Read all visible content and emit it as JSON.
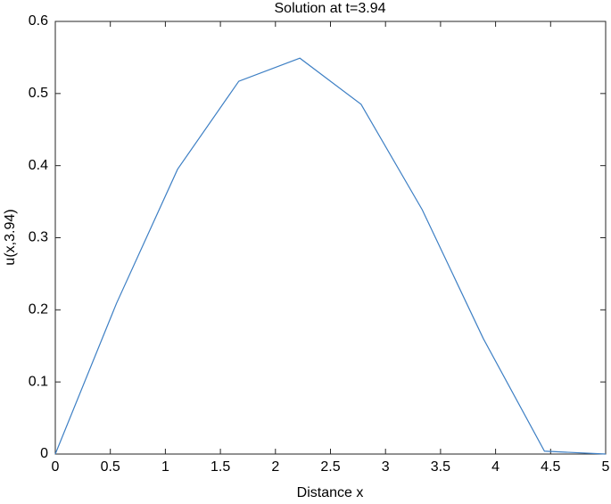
{
  "chart_data": {
    "type": "line",
    "title": "Solution at t=3.94",
    "x_label": "Distance x",
    "y_label": "u(x,3.94)",
    "x": [
      0,
      0.556,
      1.111,
      1.667,
      2.222,
      2.778,
      3.333,
      3.889,
      4.444,
      5
    ],
    "series": [
      {
        "color": "#3d7fc4",
        "values": [
          0,
          0.209,
          0.395,
          0.517,
          0.549,
          0.485,
          0.339,
          0.16,
          0.004,
          0
        ]
      }
    ],
    "xlim": [
      0,
      5
    ],
    "xticks": [
      0,
      0.5,
      1,
      1.5,
      2,
      2.5,
      3,
      3.5,
      4,
      4.5,
      5
    ],
    "ylim": [
      0,
      0.6
    ],
    "yticks": [
      0,
      0.1,
      0.2,
      0.3,
      0.4,
      0.5,
      0.6
    ],
    "grid": false
  }
}
